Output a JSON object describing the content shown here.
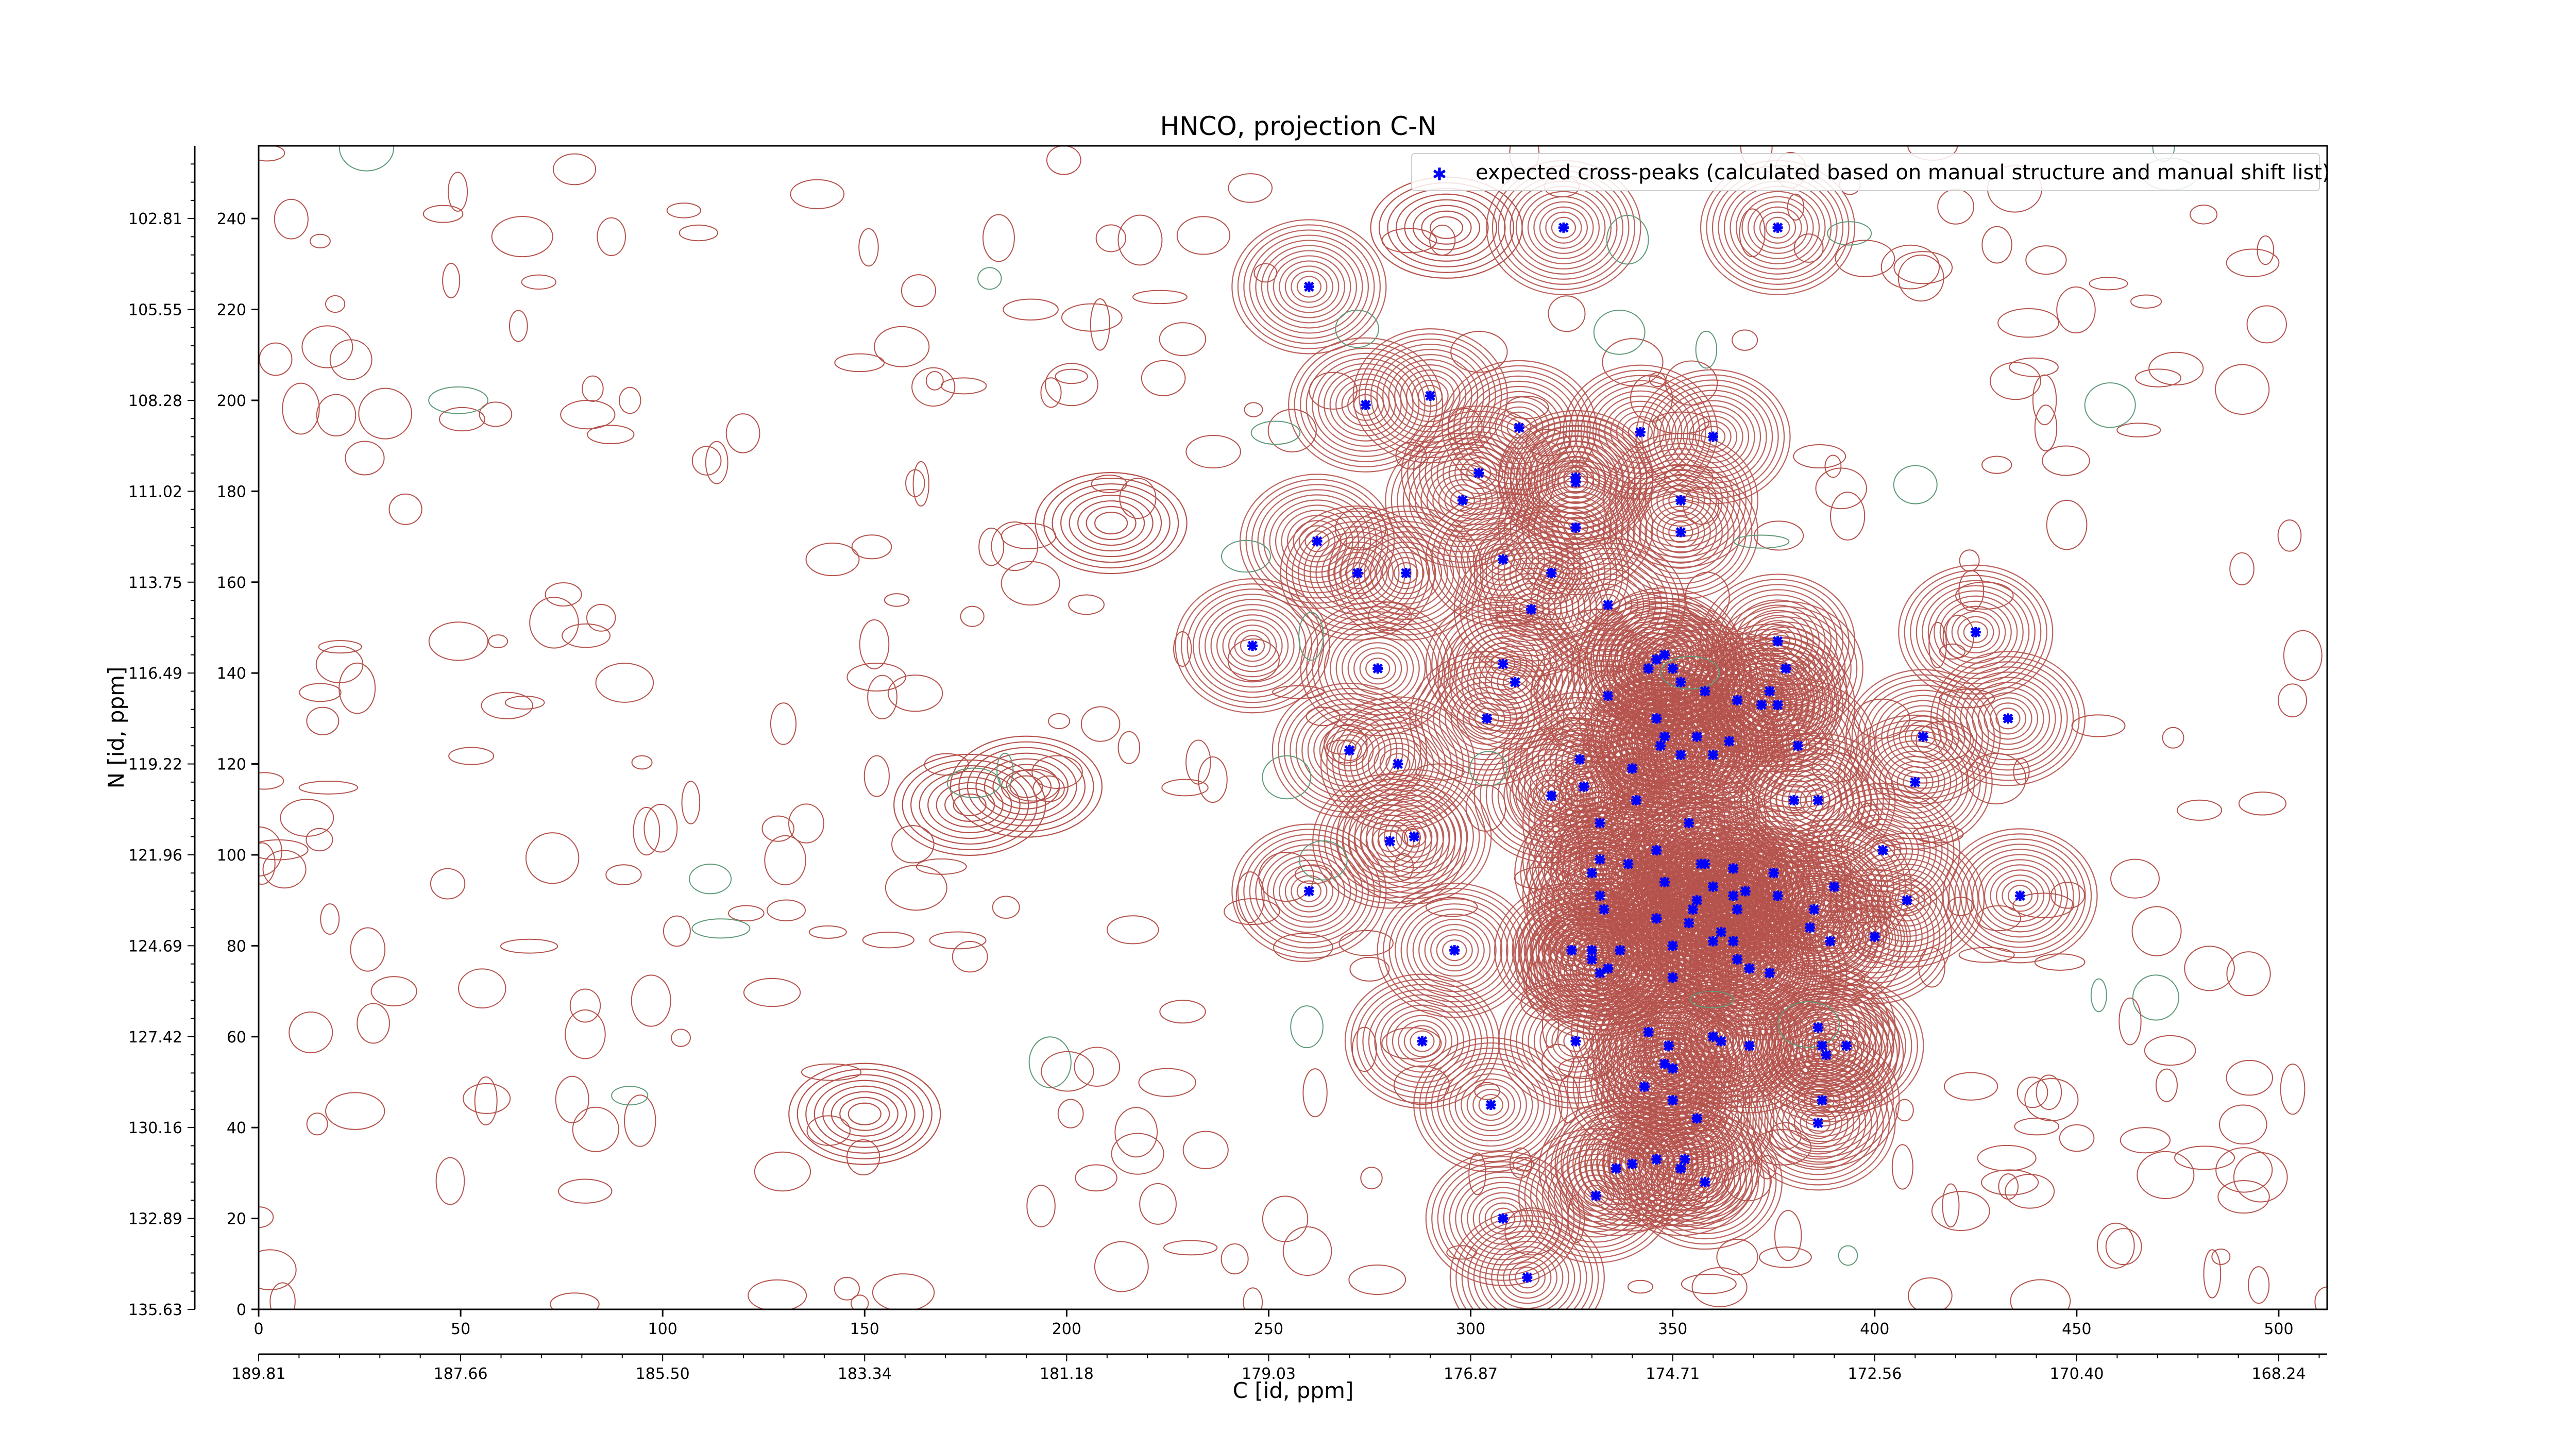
{
  "chart_data": {
    "type": "scatter",
    "title": "HNCO, projection C-N",
    "xlabel": "C [id, ppm]",
    "ylabel": "N [id, ppm]",
    "xlim": [
      0,
      512
    ],
    "ylim": [
      0,
      256
    ],
    "x_ticks": [
      0,
      50,
      100,
      150,
      200,
      250,
      300,
      350,
      400,
      450,
      500
    ],
    "y_ticks": [
      0,
      20,
      40,
      60,
      80,
      100,
      120,
      140,
      160,
      180,
      200,
      220,
      240
    ],
    "x_ppm_ticks": [
      "189.81",
      "187.66",
      "185.50",
      "183.34",
      "181.18",
      "179.03",
      "176.87",
      "174.71",
      "172.56",
      "170.40",
      "168.24"
    ],
    "y_ppm_ticks": [
      "135.63",
      "132.89",
      "130.16",
      "127.42",
      "124.69",
      "121.96",
      "119.22",
      "116.49",
      "113.75",
      "111.02",
      "108.28",
      "105.55",
      "102.81"
    ],
    "legend": {
      "label": "expected cross-peaks (calculated based on manual structure and manual shift list)",
      "placement": "upper-right"
    },
    "colors": {
      "positive_contour": "#b5524c",
      "negative_contour": "#5f9a78",
      "peak_marker": "#0000ff",
      "axes": "#000000"
    },
    "contour_levels": 12,
    "series": [
      {
        "name": "expected cross-peaks (calculated based on manual structure and manual shift list)",
        "points": [
          [
            323,
            238
          ],
          [
            376,
            238
          ],
          [
            260,
            225
          ],
          [
            274,
            199
          ],
          [
            290,
            201
          ],
          [
            312,
            194
          ],
          [
            342,
            193
          ],
          [
            360,
            192
          ],
          [
            302,
            184
          ],
          [
            326,
            183
          ],
          [
            326,
            182
          ],
          [
            352,
            178
          ],
          [
            298,
            178
          ],
          [
            326,
            172
          ],
          [
            352,
            171
          ],
          [
            262,
            169
          ],
          [
            308,
            165
          ],
          [
            272,
            162
          ],
          [
            284,
            162
          ],
          [
            320,
            162
          ],
          [
            334,
            155
          ],
          [
            315,
            154
          ],
          [
            246,
            146
          ],
          [
            425,
            149
          ],
          [
            277,
            141
          ],
          [
            376,
            147
          ],
          [
            346,
            143
          ],
          [
            350,
            141
          ],
          [
            352,
            138
          ],
          [
            308,
            142
          ],
          [
            311,
            138
          ],
          [
            378,
            141
          ],
          [
            348,
            144
          ],
          [
            344,
            141
          ],
          [
            374,
            136
          ],
          [
            376,
            133
          ],
          [
            358,
            136
          ],
          [
            334,
            135
          ],
          [
            366,
            134
          ],
          [
            372,
            133
          ],
          [
            304,
            130
          ],
          [
            433,
            130
          ],
          [
            346,
            130
          ],
          [
            356,
            126
          ],
          [
            412,
            126
          ],
          [
            364,
            125
          ],
          [
            348,
            126
          ],
          [
            381,
            124
          ],
          [
            352,
            122
          ],
          [
            360,
            122
          ],
          [
            327,
            121
          ],
          [
            340,
            119
          ],
          [
            328,
            115
          ],
          [
            410,
            116
          ],
          [
            282,
            120
          ],
          [
            270,
            123
          ],
          [
            347,
            124
          ],
          [
            386,
            112
          ],
          [
            380,
            112
          ],
          [
            320,
            113
          ],
          [
            341,
            112
          ],
          [
            332,
            107
          ],
          [
            354,
            107
          ],
          [
            286,
            104
          ],
          [
            280,
            103
          ],
          [
            402,
            101
          ],
          [
            346,
            101
          ],
          [
            339,
            98
          ],
          [
            332,
            99
          ],
          [
            358,
            98
          ],
          [
            357,
            98
          ],
          [
            375,
            96
          ],
          [
            330,
            96
          ],
          [
            365,
            97
          ],
          [
            348,
            94
          ],
          [
            376,
            91
          ],
          [
            360,
            93
          ],
          [
            390,
            93
          ],
          [
            332,
            91
          ],
          [
            365,
            91
          ],
          [
            260,
            92
          ],
          [
            356,
            90
          ],
          [
            368,
            92
          ],
          [
            366,
            88
          ],
          [
            333,
            88
          ],
          [
            354,
            85
          ],
          [
            384,
            84
          ],
          [
            436,
            91
          ],
          [
            362,
            83
          ],
          [
            346,
            86
          ],
          [
            408,
            90
          ],
          [
            360,
            81
          ],
          [
            350,
            80
          ],
          [
            374,
            74
          ],
          [
            330,
            77
          ],
          [
            400,
            82
          ],
          [
            296,
            79
          ],
          [
            365,
            81
          ],
          [
            325,
            79
          ],
          [
            337,
            79
          ],
          [
            350,
            73
          ],
          [
            332,
            74
          ],
          [
            334,
            75
          ],
          [
            366,
            77
          ],
          [
            389,
            81
          ],
          [
            369,
            75
          ],
          [
            330,
            79
          ],
          [
            386,
            62
          ],
          [
            349,
            58
          ],
          [
            344,
            61
          ],
          [
            348,
            54
          ],
          [
            288,
            59
          ],
          [
            369,
            58
          ],
          [
            362,
            59
          ],
          [
            326,
            59
          ],
          [
            360,
            60
          ],
          [
            387,
            58
          ],
          [
            388,
            56
          ],
          [
            393,
            58
          ],
          [
            350,
            53
          ],
          [
            343,
            49
          ],
          [
            350,
            46
          ],
          [
            387,
            46
          ],
          [
            305,
            45
          ],
          [
            356,
            42
          ],
          [
            386,
            41
          ],
          [
            346,
            33
          ],
          [
            340,
            32
          ],
          [
            352,
            31
          ],
          [
            358,
            28
          ],
          [
            331,
            25
          ],
          [
            336,
            31
          ],
          [
            353,
            33
          ],
          [
            308,
            20
          ],
          [
            314,
            7
          ],
          [
            385,
            88
          ],
          [
            355,
            88
          ]
        ]
      }
    ]
  }
}
